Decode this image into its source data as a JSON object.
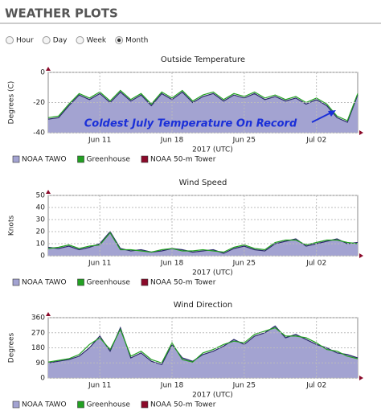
{
  "header": {
    "title": "WEATHER PLOTS"
  },
  "range_options": {
    "options": [
      "Hour",
      "Day",
      "Week",
      "Month"
    ],
    "selected": "Month"
  },
  "chart_data": [
    {
      "type": "area",
      "title": "Outside Temperature",
      "ylabel": "Degrees (C)",
      "xlabel": "2017 (UTC)",
      "annotations": [
        "Coldest July Temperature On Record"
      ],
      "x": [
        "2017-06-06",
        "2017-06-07",
        "2017-06-08",
        "2017-06-09",
        "2017-06-10",
        "2017-06-11",
        "2017-06-12",
        "2017-06-13",
        "2017-06-14",
        "2017-06-15",
        "2017-06-16",
        "2017-06-17",
        "2017-06-18",
        "2017-06-19",
        "2017-06-20",
        "2017-06-21",
        "2017-06-22",
        "2017-06-23",
        "2017-06-24",
        "2017-06-25",
        "2017-06-26",
        "2017-06-27",
        "2017-06-28",
        "2017-06-29",
        "2017-06-30",
        "2017-07-01",
        "2017-07-02",
        "2017-07-03",
        "2017-07-04",
        "2017-07-05",
        "2017-07-06"
      ],
      "xlim": [
        "2017-06-06",
        "2017-07-06"
      ],
      "xticks": [
        {
          "value": "2017-06-11",
          "label": "Jun 11"
        },
        {
          "value": "2017-06-18",
          "label": "Jun 18"
        },
        {
          "value": "2017-06-25",
          "label": "Jun 25"
        },
        {
          "value": "2017-07-02",
          "label": "Jul 02"
        }
      ],
      "ylim": [
        -40,
        0
      ],
      "yticks": [
        -40,
        -20,
        0
      ],
      "grid": true,
      "series": [
        {
          "name": "NOAA TAWO",
          "color": "#a3a3d1",
          "values": [
            -31,
            -30,
            -22,
            -15,
            -18,
            -14,
            -20,
            -13,
            -19,
            -15,
            -22,
            -14,
            -18,
            -13,
            -20,
            -16,
            -14,
            -19,
            -15,
            -17,
            -14,
            -18,
            -16,
            -19,
            -17,
            -21,
            -18,
            -22,
            -30,
            -33,
            -15
          ]
        },
        {
          "name": "Greenhouse",
          "color": "#22a022",
          "values": [
            -30,
            -29,
            -21,
            -14,
            -17,
            -13,
            -19,
            -12,
            -18,
            -14,
            -21,
            -13,
            -17,
            -12,
            -19,
            -15,
            -13,
            -18,
            -14,
            -16,
            -13,
            -17,
            -15,
            -18,
            -16,
            -20,
            -17,
            -21,
            -29,
            -32,
            -14
          ]
        },
        {
          "name": "NOAA 50-m Tower",
          "color": "#8b0a2a",
          "values": [
            null,
            null,
            null,
            null,
            null,
            null,
            null,
            null,
            null,
            null,
            null,
            null,
            null,
            null,
            null,
            null,
            null,
            null,
            null,
            null,
            null,
            null,
            null,
            null,
            null,
            null,
            null,
            null,
            null,
            null,
            null
          ]
        }
      ]
    },
    {
      "type": "area",
      "title": "Wind Speed",
      "ylabel": "Knots",
      "xlabel": "2017 (UTC)",
      "x": [
        "2017-06-06",
        "2017-06-07",
        "2017-06-08",
        "2017-06-09",
        "2017-06-10",
        "2017-06-11",
        "2017-06-12",
        "2017-06-13",
        "2017-06-14",
        "2017-06-15",
        "2017-06-16",
        "2017-06-17",
        "2017-06-18",
        "2017-06-19",
        "2017-06-20",
        "2017-06-21",
        "2017-06-22",
        "2017-06-23",
        "2017-06-24",
        "2017-06-25",
        "2017-06-26",
        "2017-06-27",
        "2017-06-28",
        "2017-06-29",
        "2017-06-30",
        "2017-07-01",
        "2017-07-02",
        "2017-07-03",
        "2017-07-04",
        "2017-07-05",
        "2017-07-06"
      ],
      "xlim": [
        "2017-06-06",
        "2017-07-06"
      ],
      "xticks": [
        {
          "value": "2017-06-11",
          "label": "Jun 11"
        },
        {
          "value": "2017-06-18",
          "label": "Jun 18"
        },
        {
          "value": "2017-06-25",
          "label": "Jun 25"
        },
        {
          "value": "2017-07-02",
          "label": "Jul 02"
        }
      ],
      "ylim": [
        0,
        50
      ],
      "yticks": [
        0,
        10,
        20,
        30,
        40,
        50
      ],
      "grid": true,
      "series": [
        {
          "name": "NOAA TAWO",
          "color": "#a3a3d1",
          "values": [
            7,
            6,
            8,
            5,
            7,
            10,
            20,
            6,
            4,
            5,
            3,
            4,
            6,
            5,
            3,
            4,
            5,
            2,
            6,
            8,
            5,
            4,
            10,
            12,
            14,
            8,
            10,
            12,
            14,
            10,
            11
          ]
        },
        {
          "name": "Greenhouse",
          "color": "#22a022",
          "values": [
            6,
            7,
            9,
            6,
            8,
            9,
            19,
            5,
            5,
            4,
            3,
            5,
            6,
            4,
            4,
            5,
            4,
            3,
            7,
            9,
            6,
            5,
            11,
            13,
            13,
            9,
            11,
            13,
            13,
            11,
            10
          ]
        },
        {
          "name": "NOAA 50-m Tower",
          "color": "#8b0a2a",
          "values": [
            null,
            null,
            null,
            null,
            null,
            null,
            null,
            null,
            null,
            null,
            null,
            null,
            null,
            null,
            null,
            null,
            null,
            null,
            null,
            null,
            null,
            null,
            null,
            null,
            null,
            null,
            null,
            null,
            null,
            null,
            null
          ]
        }
      ]
    },
    {
      "type": "area",
      "title": "Wind Direction",
      "ylabel": "Degrees",
      "xlabel": "2017 (UTC)",
      "x": [
        "2017-06-06",
        "2017-06-07",
        "2017-06-08",
        "2017-06-09",
        "2017-06-10",
        "2017-06-11",
        "2017-06-12",
        "2017-06-13",
        "2017-06-14",
        "2017-06-15",
        "2017-06-16",
        "2017-06-17",
        "2017-06-18",
        "2017-06-19",
        "2017-06-20",
        "2017-06-21",
        "2017-06-22",
        "2017-06-23",
        "2017-06-24",
        "2017-06-25",
        "2017-06-26",
        "2017-06-27",
        "2017-06-28",
        "2017-06-29",
        "2017-06-30",
        "2017-07-01",
        "2017-07-02",
        "2017-07-03",
        "2017-07-04",
        "2017-07-05",
        "2017-07-06"
      ],
      "xlim": [
        "2017-06-06",
        "2017-07-06"
      ],
      "xticks": [
        {
          "value": "2017-06-11",
          "label": "Jun 11"
        },
        {
          "value": "2017-06-18",
          "label": "Jun 18"
        },
        {
          "value": "2017-06-25",
          "label": "Jun 25"
        },
        {
          "value": "2017-07-02",
          "label": "Jul 02"
        }
      ],
      "ylim": [
        0,
        360
      ],
      "yticks": [
        0,
        90,
        180,
        270,
        360
      ],
      "grid": true,
      "series": [
        {
          "name": "NOAA TAWO",
          "color": "#a3a3d1",
          "values": [
            90,
            100,
            110,
            130,
            180,
            250,
            160,
            300,
            120,
            150,
            100,
            80,
            200,
            120,
            100,
            140,
            160,
            190,
            230,
            200,
            250,
            270,
            310,
            240,
            260,
            230,
            200,
            180,
            150,
            140,
            120
          ]
        },
        {
          "name": "Greenhouse",
          "color": "#22a022",
          "values": [
            95,
            105,
            115,
            140,
            200,
            240,
            170,
            290,
            130,
            160,
            110,
            90,
            210,
            110,
            95,
            150,
            170,
            200,
            220,
            210,
            260,
            280,
            300,
            250,
            250,
            240,
            210,
            170,
            160,
            130,
            115
          ]
        },
        {
          "name": "NOAA 50-m Tower",
          "color": "#8b0a2a",
          "values": [
            null,
            null,
            null,
            null,
            null,
            null,
            null,
            null,
            null,
            null,
            null,
            null,
            null,
            null,
            null,
            null,
            null,
            null,
            null,
            null,
            null,
            null,
            null,
            null,
            null,
            null,
            null,
            null,
            null,
            null,
            null
          ]
        }
      ]
    }
  ]
}
